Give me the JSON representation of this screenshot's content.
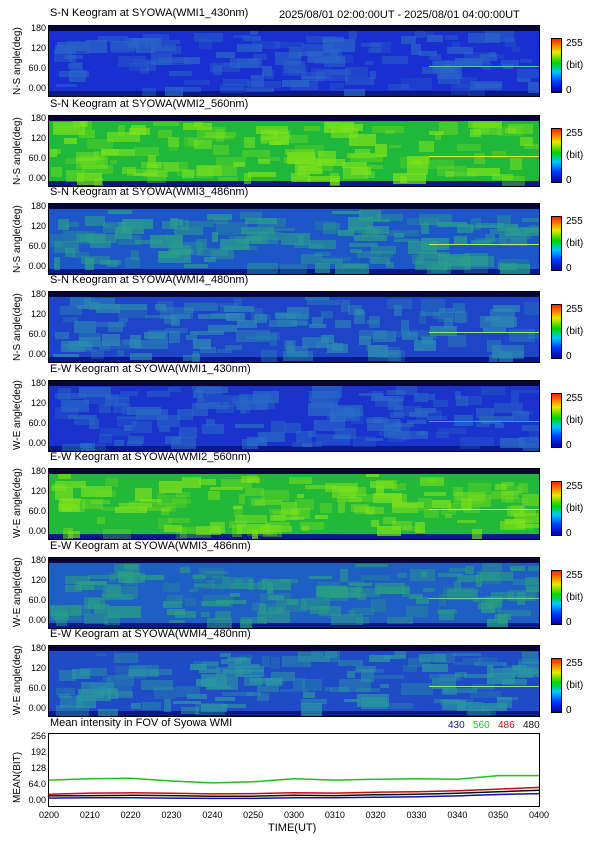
{
  "header": {
    "time_range": "2025/08/01 02:00:00UT - 2025/08/01 04:00:00UT"
  },
  "keograms": [
    {
      "title": "S-N Keogram at SYOWA(WMI1_430nm)",
      "ylabel": "N-S angle(deg)",
      "base": "#1a2fcf",
      "tex": "#2a66c8",
      "streak": "#4fd0a0"
    },
    {
      "title": "S-N Keogram at SYOWA(WMI2_560nm)",
      "ylabel": "N-S angle(deg)",
      "base": "#1fb83a",
      "tex": "#7ee21a",
      "streak": "#e6ef2a"
    },
    {
      "title": "S-N Keogram at SYOWA(WMI3_486nm)",
      "ylabel": "N-S angle(deg)",
      "base": "#1d56c6",
      "tex": "#2aa08a",
      "streak": "#b6e86a"
    },
    {
      "title": "S-N Keogram at SYOWA(WMI4_480nm)",
      "ylabel": "N-S angle(deg)",
      "base": "#1e45c8",
      "tex": "#2c8cb0",
      "streak": "#9ce86a"
    },
    {
      "title": "E-W Keogram at SYOWA(WMI1_430nm)",
      "ylabel": "W-E angle(deg)",
      "base": "#1a33cc",
      "tex": "#2a6bc6",
      "streak": "#3aa6b8"
    },
    {
      "title": "E-W Keogram at SYOWA(WMI2_560nm)",
      "ylabel": "W-E angle(deg)",
      "base": "#22b838",
      "tex": "#7fe01c",
      "streak": "#e8ee2a"
    },
    {
      "title": "E-W Keogram at SYOWA(WMI3_486nm)",
      "ylabel": "W-E angle(deg)",
      "base": "#1f5ec2",
      "tex": "#29a083",
      "streak": "#6fd08e"
    },
    {
      "title": "E-W Keogram at SYOWA(WMI4_480nm)",
      "ylabel": "W-E angle(deg)",
      "base": "#1f4cc6",
      "tex": "#2a98a0",
      "streak": "#9ce86a"
    }
  ],
  "keogram_yticks": [
    "180",
    "120",
    "60.0",
    "0.00"
  ],
  "colorbar": {
    "max": "255",
    "unit": "(bit)",
    "min": "0"
  },
  "chart_data": {
    "type": "line",
    "title": "Mean intensity in FOV of Syowa WMI",
    "ylabel": "MEAN(BIT)",
    "xlabel": "TIME(UT)",
    "ylim": [
      0,
      256
    ],
    "yticks": [
      "256",
      "192",
      "128",
      "64.0",
      "0.00"
    ],
    "x": [
      "0200",
      "0210",
      "0220",
      "0230",
      "0240",
      "0250",
      "0300",
      "0310",
      "0320",
      "0330",
      "0340",
      "0350",
      "0400"
    ],
    "series": [
      {
        "name": "430",
        "color": "#1010b0",
        "values": [
          28,
          29,
          29,
          28,
          27,
          27,
          29,
          29,
          31,
          33,
          36,
          41,
          44
        ]
      },
      {
        "name": "560",
        "color": "#20c020",
        "values": [
          92,
          97,
          99,
          89,
          82,
          86,
          97,
          92,
          95,
          97,
          95,
          108,
          108
        ]
      },
      {
        "name": "486",
        "color": "#c01010",
        "values": [
          42,
          46,
          47,
          45,
          43,
          44,
          47,
          46,
          49,
          51,
          54,
          60,
          66
        ]
      },
      {
        "name": "480",
        "color": "#101010",
        "values": [
          36,
          37,
          38,
          37,
          35,
          35,
          38,
          37,
          40,
          42,
          45,
          51,
          56
        ]
      }
    ]
  }
}
